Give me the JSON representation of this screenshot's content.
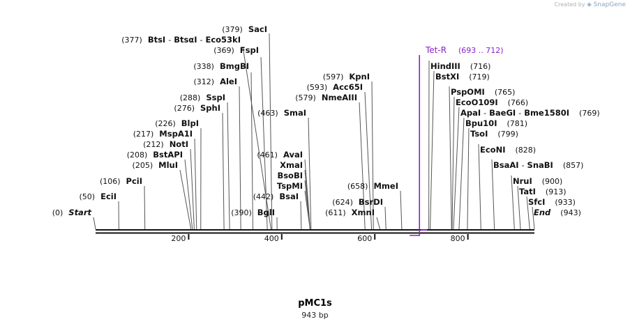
{
  "credit": {
    "prefix": "Created by",
    "brand": "SnapGene"
  },
  "plasmid": {
    "name": "pMC1s",
    "length_label": "943 bp"
  },
  "axis": {
    "ticks": [
      {
        "bp": 200,
        "label": "200"
      },
      {
        "bp": 400,
        "label": "400"
      },
      {
        "bp": 600,
        "label": "600"
      },
      {
        "bp": 800,
        "label": "800"
      }
    ]
  },
  "feature": {
    "name": "Tet-R",
    "range": "(693 .. 712)",
    "color": "#8a1fc7"
  },
  "colors": {
    "feature": "#8a1fc7",
    "text": "#111111",
    "line": "#555555"
  },
  "left_labels": [
    {
      "pos": "(377)",
      "names": [
        "BtsI",
        "BtsαI",
        "Eco53kI"
      ],
      "bp": 377
    },
    {
      "pos": "(379)",
      "names": [
        "SacI"
      ],
      "bp": 379
    },
    {
      "pos": "(369)",
      "names": [
        "FspI"
      ],
      "bp": 369
    },
    {
      "pos": "(338)",
      "names": [
        "BmgBI"
      ],
      "bp": 338
    },
    {
      "pos": "(312)",
      "names": [
        "AleI"
      ],
      "bp": 312
    },
    {
      "pos": "(288)",
      "names": [
        "SspI"
      ],
      "bp": 288
    },
    {
      "pos": "(276)",
      "names": [
        "SphI"
      ],
      "bp": 276
    },
    {
      "pos": "(226)",
      "names": [
        "BlpI"
      ],
      "bp": 226
    },
    {
      "pos": "(217)",
      "names": [
        "MspA1I"
      ],
      "bp": 217
    },
    {
      "pos": "(212)",
      "names": [
        "NotI"
      ],
      "bp": 212
    },
    {
      "pos": "(208)",
      "names": [
        "BstAPI"
      ],
      "bp": 208
    },
    {
      "pos": "(205)",
      "names": [
        "MluI"
      ],
      "bp": 205
    },
    {
      "pos": "(106)",
      "names": [
        "PciI"
      ],
      "bp": 106
    },
    {
      "pos": "(50)",
      "names": [
        "EciI"
      ],
      "bp": 50
    },
    {
      "pos": "(0)",
      "names": [
        "Start"
      ],
      "bp": 0,
      "boundary": true
    },
    {
      "pos": "(463)",
      "names": [
        "SmaI"
      ],
      "bp": 463
    },
    {
      "pos": "(461)",
      "names": [
        "AvaI"
      ],
      "bp": 461
    },
    {
      "pos": "",
      "names": [
        "XmaI"
      ],
      "bp": 461
    },
    {
      "pos": "",
      "names": [
        "BsoBI"
      ],
      "bp": 461
    },
    {
      "pos": "",
      "names": [
        "TspMI"
      ],
      "bp": 461
    },
    {
      "pos": "(442)",
      "names": [
        "BsaI"
      ],
      "bp": 442
    },
    {
      "pos": "(390)",
      "names": [
        "BglI"
      ],
      "bp": 390
    },
    {
      "pos": "(597)",
      "names": [
        "KpnI"
      ],
      "bp": 597
    },
    {
      "pos": "(593)",
      "names": [
        "Acc65I"
      ],
      "bp": 593
    },
    {
      "pos": "(579)",
      "names": [
        "NmeAIII"
      ],
      "bp": 579
    },
    {
      "pos": "(658)",
      "names": [
        "MmeI"
      ],
      "bp": 658
    },
    {
      "pos": "(624)",
      "names": [
        "BsrDI"
      ],
      "bp": 624
    },
    {
      "pos": "(611)",
      "names": [
        "XmnI"
      ],
      "bp": 611
    }
  ],
  "right_labels": [
    {
      "pos": "(716)",
      "names": [
        "HindIII"
      ],
      "bp": 716
    },
    {
      "pos": "(719)",
      "names": [
        "BstXI"
      ],
      "bp": 719
    },
    {
      "pos": "(765)",
      "names": [
        "PspOMI"
      ],
      "bp": 765
    },
    {
      "pos": "(766)",
      "names": [
        "EcoO109I"
      ],
      "bp": 766
    },
    {
      "pos": "(769)",
      "names": [
        "ApaI",
        "BaeGI",
        "Bme1580I"
      ],
      "bp": 769
    },
    {
      "pos": "(781)",
      "names": [
        "Bpu10I"
      ],
      "bp": 781
    },
    {
      "pos": "(799)",
      "names": [
        "TsoI"
      ],
      "bp": 799
    },
    {
      "pos": "(828)",
      "names": [
        "EcoNI"
      ],
      "bp": 828
    },
    {
      "pos": "(857)",
      "names": [
        "BsaAI",
        "SnaBI"
      ],
      "bp": 857
    },
    {
      "pos": "(900)",
      "names": [
        "NruI"
      ],
      "bp": 900
    },
    {
      "pos": "(913)",
      "names": [
        "TatI"
      ],
      "bp": 913
    },
    {
      "pos": "(933)",
      "names": [
        "SfcI"
      ],
      "bp": 933
    },
    {
      "pos": "(943)",
      "names": [
        "End"
      ],
      "bp": 943,
      "boundary": true
    }
  ]
}
